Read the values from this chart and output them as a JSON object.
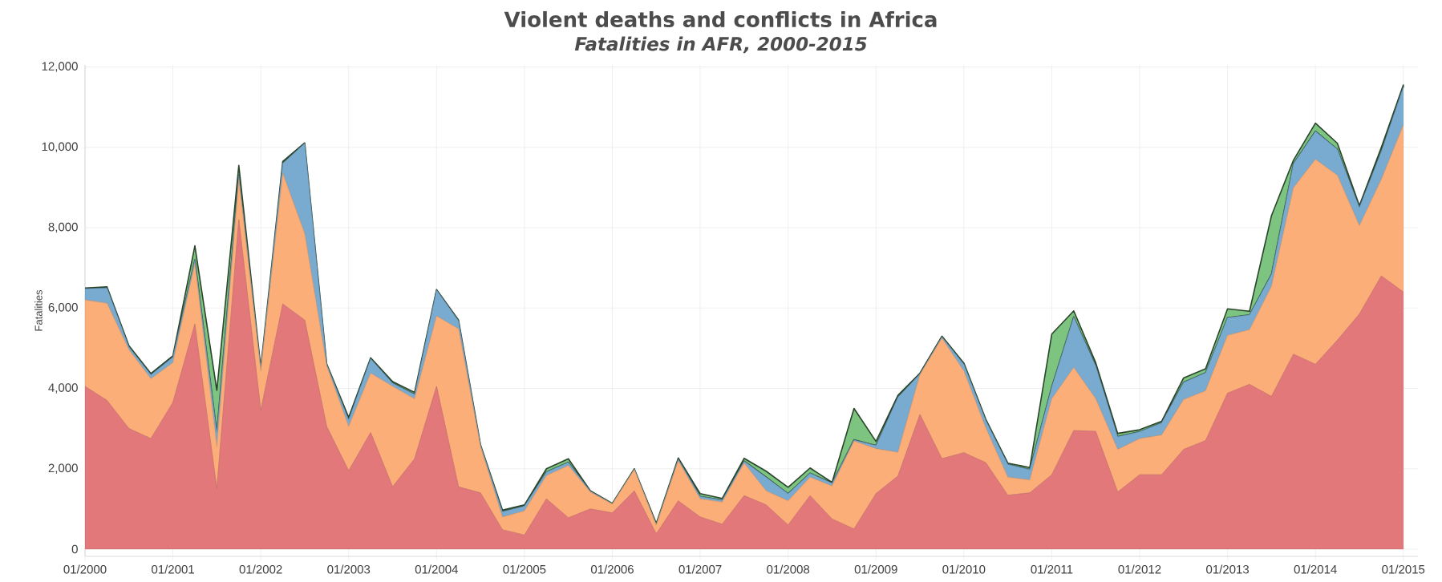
{
  "chart_data": {
    "type": "area",
    "title": "Violent deaths and conflicts in Africa",
    "subtitle": "Fatalities in AFR, 2000-2015",
    "ylabel": "Fatalities",
    "stacked": true,
    "grid": true,
    "line_style": "solid",
    "x": [
      "2000-01",
      "2000-04",
      "2000-07",
      "2000-10",
      "2001-01",
      "2001-04",
      "2001-07",
      "2001-10",
      "2002-01",
      "2002-04",
      "2002-07",
      "2002-10",
      "2003-01",
      "2003-04",
      "2003-07",
      "2003-10",
      "2004-01",
      "2004-04",
      "2004-07",
      "2004-10",
      "2005-01",
      "2005-04",
      "2005-07",
      "2005-10",
      "2006-01",
      "2006-04",
      "2006-07",
      "2006-10",
      "2007-01",
      "2007-04",
      "2007-07",
      "2007-10",
      "2008-01",
      "2008-04",
      "2008-07",
      "2008-10",
      "2009-01",
      "2009-04",
      "2009-07",
      "2009-10",
      "2010-01",
      "2010-04",
      "2010-07",
      "2010-10",
      "2011-01",
      "2011-04",
      "2011-07",
      "2011-10",
      "2012-01",
      "2012-04",
      "2012-07",
      "2012-10",
      "2013-01",
      "2013-04",
      "2013-07",
      "2013-10",
      "2014-01",
      "2014-04",
      "2014-07",
      "2014-10",
      "2015-01"
    ],
    "xlim": [
      "2000-01",
      "2015-03"
    ],
    "xticks": [
      {
        "value": "2000-01",
        "label": "01/2000"
      },
      {
        "value": "2001-01",
        "label": "01/2001"
      },
      {
        "value": "2002-01",
        "label": "01/2002"
      },
      {
        "value": "2003-01",
        "label": "01/2003"
      },
      {
        "value": "2004-01",
        "label": "01/2004"
      },
      {
        "value": "2005-01",
        "label": "01/2005"
      },
      {
        "value": "2006-01",
        "label": "01/2006"
      },
      {
        "value": "2007-01",
        "label": "01/2007"
      },
      {
        "value": "2008-01",
        "label": "01/2008"
      },
      {
        "value": "2009-01",
        "label": "01/2009"
      },
      {
        "value": "2010-01",
        "label": "01/2010"
      },
      {
        "value": "2011-01",
        "label": "01/2011"
      },
      {
        "value": "2012-01",
        "label": "01/2012"
      },
      {
        "value": "2013-01",
        "label": "01/2013"
      },
      {
        "value": "2014-01",
        "label": "01/2014"
      },
      {
        "value": "2015-01",
        "label": "01/2015"
      }
    ],
    "ylim": [
      -180,
      12050
    ],
    "yticks": [
      0,
      {
        "value": 2000,
        "label": "2,000"
      },
      {
        "value": 4000,
        "label": "4,000"
      },
      {
        "value": 6000,
        "label": "6,000"
      },
      {
        "value": 8000,
        "label": "8,000"
      },
      {
        "value": 10000,
        "label": "10,000"
      },
      {
        "value": 12000,
        "label": "12,000"
      }
    ],
    "series": [
      {
        "color": "#e3787b",
        "values": [
          4050,
          3700,
          3000,
          2750,
          3650,
          5600,
          1500,
          8200,
          3450,
          6100,
          5700,
          3050,
          1950,
          2900,
          1550,
          2250,
          4050,
          1550,
          1400,
          480,
          350,
          1250,
          780,
          1000,
          900,
          1450,
          380,
          1200,
          800,
          620,
          1330,
          1100,
          600,
          1330,
          750,
          500,
          1380,
          1820,
          3350,
          2250,
          2400,
          2150,
          1340,
          1400,
          1850,
          2950,
          2930,
          1420,
          1850,
          1850,
          2480,
          2700,
          3880,
          4100,
          3800,
          4850,
          4600,
          5200,
          5850,
          6800,
          6400
        ]
      },
      {
        "color": "#fbae78",
        "values": [
          2150,
          2420,
          1960,
          1490,
          990,
          1500,
          1050,
          1000,
          980,
          3250,
          2150,
          1510,
          1100,
          1480,
          2500,
          1490,
          1750,
          3930,
          1150,
          320,
          600,
          580,
          1300,
          420,
          220,
          530,
          220,
          1000,
          450,
          550,
          810,
          350,
          600,
          460,
          820,
          2190,
          1120,
          590,
          990,
          3000,
          2030,
          860,
          450,
          320,
          1890,
          1570,
          810,
          1060,
          900,
          990,
          1240,
          1240,
          1440,
          1360,
          2740,
          4140,
          5100,
          4100,
          2200,
          2400,
          4150
        ]
      },
      {
        "color": "#79aad0",
        "values": [
          280,
          380,
          70,
          100,
          140,
          100,
          350,
          100,
          70,
          250,
          2250,
          40,
          170,
          360,
          80,
          110,
          650,
          200,
          40,
          130,
          120,
          90,
          80,
          20,
          10,
          10,
          20,
          40,
          60,
          50,
          50,
          340,
          180,
          100,
          70,
          30,
          80,
          1370,
          20,
          30,
          170,
          190,
          320,
          260,
          300,
          1260,
          820,
          320,
          170,
          300,
          430,
          450,
          440,
          370,
          300,
          600,
          700,
          650,
          450,
          700,
          950
        ]
      },
      {
        "color": "#7cc47f",
        "values": [
          20,
          30,
          30,
          30,
          30,
          350,
          1050,
          250,
          20,
          50,
          10,
          10,
          60,
          20,
          40,
          50,
          10,
          20,
          10,
          40,
          30,
          80,
          90,
          10,
          10,
          10,
          20,
          30,
          70,
          40,
          70,
          150,
          160,
          130,
          20,
          780,
          100,
          50,
          20,
          20,
          30,
          30,
          30,
          50,
          1310,
          150,
          80,
          80,
          50,
          40,
          110,
          100,
          220,
          90,
          1460,
          90,
          200,
          150,
          50,
          100,
          50
        ]
      }
    ]
  }
}
